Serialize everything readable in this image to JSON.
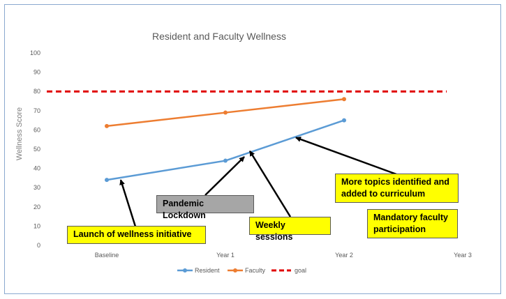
{
  "chart_data": {
    "type": "line",
    "title": "Resident and Faculty Wellness",
    "ylabel": "Wellness Score",
    "xlabel": "",
    "categories": [
      "Baseline",
      "Year 1",
      "Year 2",
      "Year 3"
    ],
    "ylim": [
      0,
      100
    ],
    "yticks": [
      0,
      10,
      20,
      30,
      40,
      50,
      60,
      70,
      80,
      90,
      100
    ],
    "grid": false,
    "legend_position": "bottom",
    "series": [
      {
        "name": "Resident",
        "values": [
          34,
          44,
          65,
          null
        ],
        "color": "#5b9bd5",
        "style": "solid-markers"
      },
      {
        "name": "Faculty",
        "values": [
          62,
          69,
          76,
          null
        ],
        "color": "#ed7d31",
        "style": "solid-markers"
      },
      {
        "name": "goal",
        "values": [
          80,
          80,
          80,
          80
        ],
        "color": "#e00000",
        "style": "dashed"
      }
    ],
    "annotations": [
      {
        "text": "Launch of wellness initiative",
        "color": "yellow",
        "arrow_to": {
          "x": "Baseline",
          "y": 34
        }
      },
      {
        "text": "Pandemic Lockdown",
        "color": "gray",
        "arrow_to": {
          "x": "Year 1",
          "y": 46
        }
      },
      {
        "text": "Weekly sessions",
        "color": "yellow",
        "arrow_to": {
          "x": "Year 1",
          "y": 49
        }
      },
      {
        "text": "More topics identified and added to curriculum",
        "color": "yellow",
        "arrow_to": {
          "x": "Year 2",
          "y": 56
        }
      },
      {
        "text": "Mandatory faculty participation",
        "color": "yellow",
        "arrow_to": null
      }
    ]
  }
}
